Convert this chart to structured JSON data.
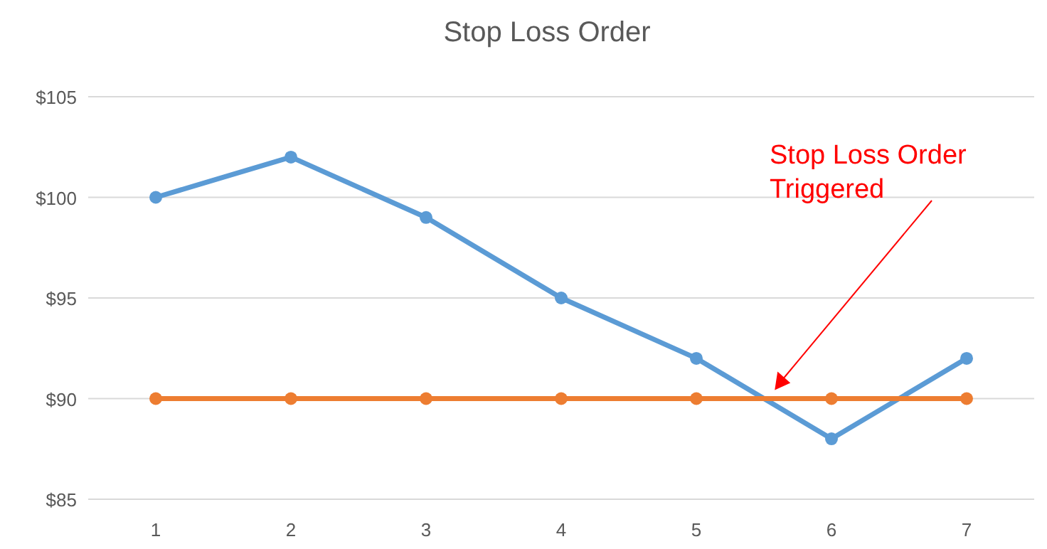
{
  "chart_data": {
    "type": "line",
    "title": "Stop Loss Order",
    "categories": [
      "1",
      "2",
      "3",
      "4",
      "5",
      "6",
      "7"
    ],
    "series": [
      {
        "color": "#5b9bd5",
        "values": [
          100,
          102,
          99,
          95,
          92,
          88,
          92
        ]
      },
      {
        "color": "#ed7d31",
        "values": [
          90,
          90,
          90,
          90,
          90,
          90,
          90
        ]
      }
    ],
    "ylim": [
      85,
      105
    ],
    "yticks": [
      {
        "value": 85,
        "label": "$85"
      },
      {
        "value": 90,
        "label": "$90"
      },
      {
        "value": 95,
        "label": "$95"
      },
      {
        "value": 100,
        "label": "$100"
      },
      {
        "value": 105,
        "label": "$105"
      }
    ],
    "grid": "y",
    "marker": "circle",
    "line_style": "solid",
    "annotations": [
      "Stop Loss Order\nTriggered"
    ]
  }
}
